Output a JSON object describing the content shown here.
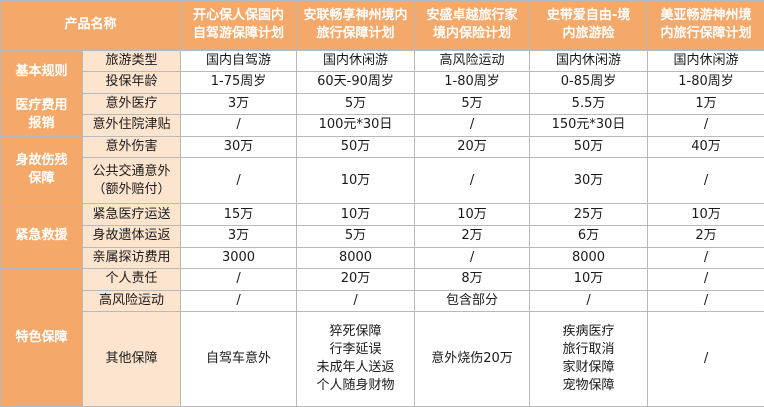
{
  "header": {
    "corner": "产品名称",
    "products": [
      [
        "开心保人保国内",
        "自驾游保障计划"
      ],
      [
        "安联畅享神州境内",
        "旅行保障计划"
      ],
      [
        "安盛卓越旅行家",
        "境内保险计划"
      ],
      [
        "史带爱自由-境",
        "内旅游险"
      ],
      [
        "美亚畅游神州境",
        "内旅行保障计划"
      ]
    ]
  },
  "categories": {
    "basic": "基本规则",
    "medical": [
      "医疗费用",
      "报销"
    ],
    "death": [
      "身故伤残",
      "保障"
    ],
    "rescue": "紧急救援",
    "special": "特色保障"
  },
  "rows": {
    "travel_type": {
      "label": "旅游类型",
      "values": [
        "国内自驾游",
        "国内休闲游",
        "高风险运动",
        "国内休闲游",
        "国内休闲游"
      ]
    },
    "age": {
      "label": "投保年龄",
      "values": [
        "1-75周岁",
        "60天-90周岁",
        "1-80周岁",
        "0-85周岁",
        "1-80周岁"
      ]
    },
    "accident_medical": {
      "label": "意外医疗",
      "values": [
        "3万",
        "5万",
        "5万",
        "5.5万",
        "1万"
      ]
    },
    "hospital_allowance": {
      "label": "意外住院津贴",
      "values": [
        "/",
        "100元*30日",
        "/",
        "150元*30日",
        "/"
      ]
    },
    "accident_injury": {
      "label": "意外伤害",
      "values": [
        "30万",
        "50万",
        "20万",
        "50万",
        "40万"
      ]
    },
    "public_transport": {
      "label": [
        "公共交通意外",
        "（额外赔付）"
      ],
      "values": [
        "/",
        "10万",
        "/",
        "30万",
        "/"
      ]
    },
    "medical_evac": {
      "label": "紧急医疗运送",
      "values": [
        "15万",
        "10万",
        "10万",
        "25万",
        "10万"
      ]
    },
    "repatriation": {
      "label": "身故遗体运返",
      "values": [
        "3万",
        "5万",
        "2万",
        "6万",
        "2万"
      ]
    },
    "family_visit": {
      "label": "亲属探访费用",
      "values": [
        "3000",
        "8000",
        "/",
        "8000",
        "/"
      ]
    },
    "liability": {
      "label": "个人责任",
      "values": [
        "/",
        "20万",
        "8万",
        "10万",
        "/"
      ]
    },
    "high_risk": {
      "label": "高风险运动",
      "values": [
        "/",
        "/",
        "包含部分",
        "/",
        "/"
      ]
    },
    "other": {
      "label": "其他保障",
      "p1": "自驾车意外",
      "p2": [
        "猝死保障",
        "行李延误",
        "未成年人送返",
        "个人随身财物"
      ],
      "p3": "意外烧伤20万",
      "p4": [
        "疾病医疗",
        "旅行取消",
        "家财保障",
        "宠物保障"
      ],
      "p5": "/"
    }
  },
  "colors": {
    "header_bg": "#f4a96a",
    "subheader_bg": "#fde4cf",
    "border": "#b9b9b9"
  }
}
